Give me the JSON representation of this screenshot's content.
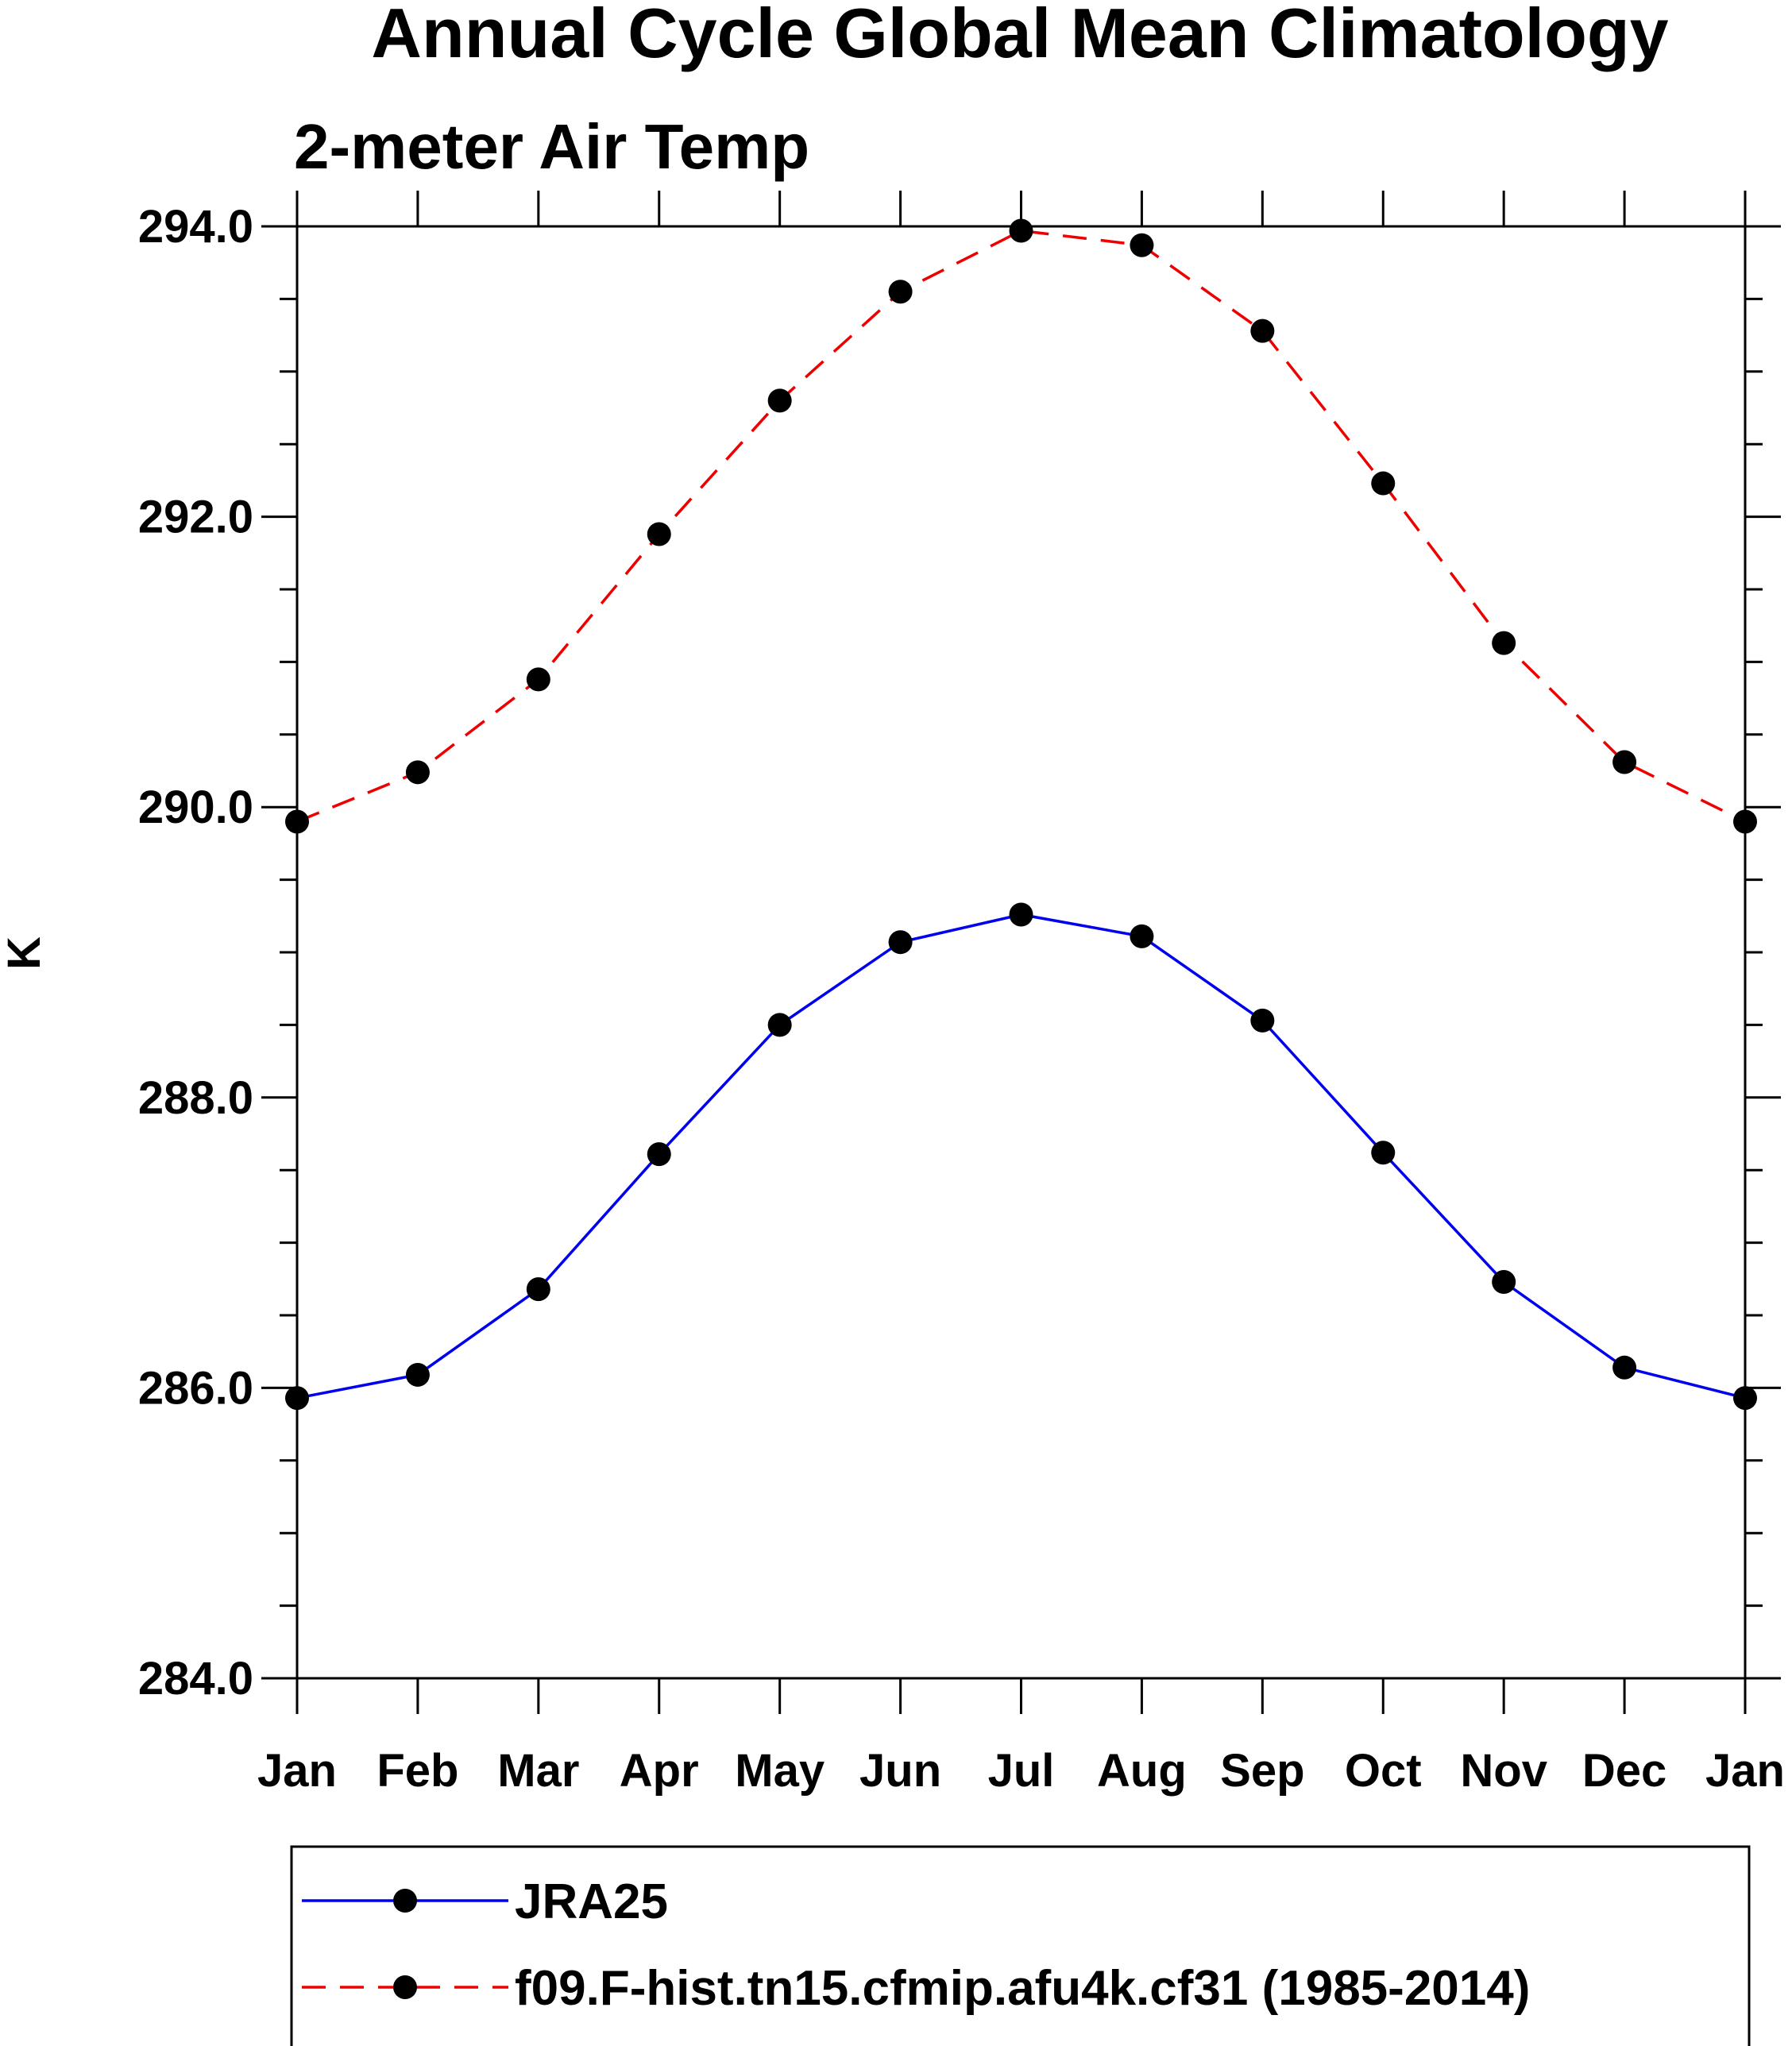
{
  "chart_data": {
    "type": "line",
    "title": "Annual Cycle Global Mean Climatology",
    "subtitle": "2-meter Air Temp",
    "xlabel": "",
    "ylabel": "K",
    "categories": [
      "Jan",
      "Feb",
      "Mar",
      "Apr",
      "May",
      "Jun",
      "Jul",
      "Aug",
      "Sep",
      "Oct",
      "Nov",
      "Dec",
      "Jan"
    ],
    "ylim": [
      284.0,
      294.0
    ],
    "yticks": [
      "284.0",
      "286.0",
      "288.0",
      "290.0",
      "292.0",
      "294.0"
    ],
    "ytick_values": [
      284,
      286,
      288,
      290,
      292,
      294
    ],
    "series": [
      {
        "name": "JRA25",
        "color": "#0000ee",
        "dash": "solid",
        "values": [
          285.93,
          286.09,
          286.68,
          287.61,
          288.5,
          289.07,
          289.26,
          289.11,
          288.53,
          287.62,
          286.73,
          286.14,
          285.93
        ]
      },
      {
        "name": "f09.F-hist.tn15.cfmip.afu4k.cf31 (1985-2014)",
        "color": "#ee0000",
        "dash": "dashed",
        "values": [
          289.9,
          290.24,
          290.88,
          291.88,
          292.8,
          293.55,
          293.97,
          293.87,
          293.28,
          292.23,
          291.13,
          290.31,
          289.9
        ]
      }
    ],
    "marker_color": "#000000",
    "grid": false,
    "legend_position": "bottom"
  }
}
